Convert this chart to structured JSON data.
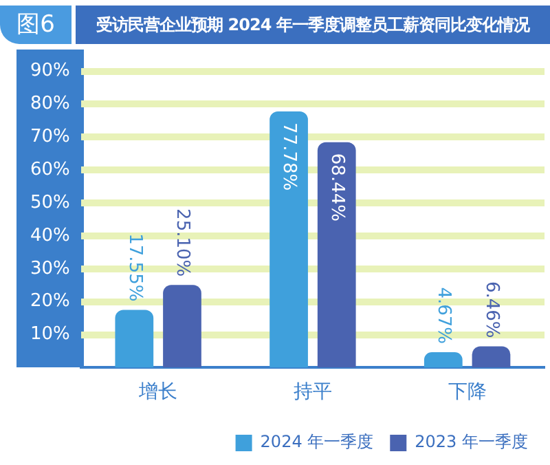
{
  "chart_data": {
    "type": "bar",
    "title": "受访民营企业预期 2024 年一季度调整员工薪资同比变化情况",
    "annotations": [
      "图6"
    ],
    "categories": [
      "增长",
      "持平",
      "下降"
    ],
    "series": [
      {
        "name": "2024 年一季度",
        "color": "#3fa0dc",
        "values": [
          17.55,
          77.78,
          4.67
        ]
      },
      {
        "name": "2023 年一季度",
        "color": "#4a63b0",
        "values": [
          25.1,
          68.44,
          6.46
        ]
      }
    ],
    "value_labels": [
      [
        "17.55%",
        "77.78%",
        "4.67%"
      ],
      [
        "25.10%",
        "68.44%",
        "6.46%"
      ]
    ],
    "ylim": [
      0,
      90
    ],
    "yticks": [
      {
        "value": 10,
        "label": "10%"
      },
      {
        "value": 20,
        "label": "20%"
      },
      {
        "value": 30,
        "label": "30%"
      },
      {
        "value": 40,
        "label": "40%"
      },
      {
        "value": 50,
        "label": "50%"
      },
      {
        "value": 60,
        "label": "60%"
      },
      {
        "value": 70,
        "label": "70%"
      },
      {
        "value": 80,
        "label": "80%"
      },
      {
        "value": 90,
        "label": "90%"
      }
    ],
    "grid": "y",
    "legend": "bottom right"
  }
}
